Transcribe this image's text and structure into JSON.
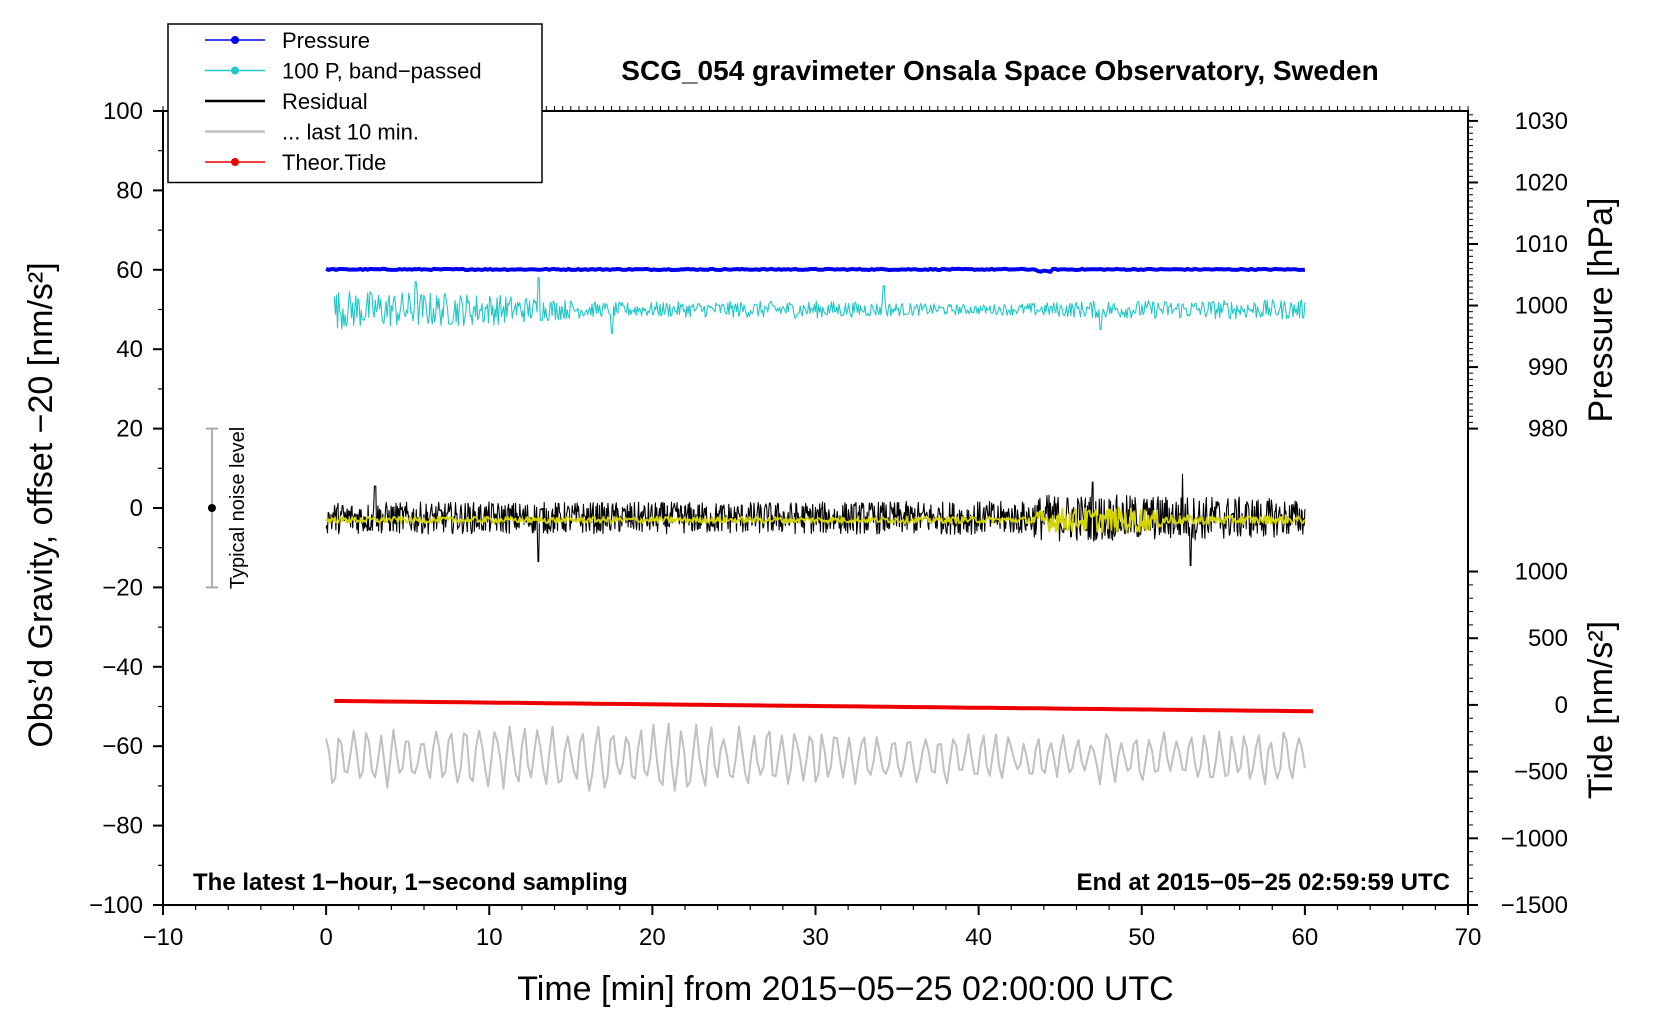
{
  "chart_data": {
    "type": "line",
    "title": "SCG_054 gravimeter Onsala Space Observatory, Sweden",
    "xlabel": "Time [min] from 2015−05−25 02:00:00 UTC",
    "ylabel": "Obs’d Gravity, offset −20 [nm/s²]",
    "xlim": [
      -10,
      70
    ],
    "ylim": [
      -100,
      100
    ],
    "x_ticks": [
      -10,
      0,
      10,
      20,
      30,
      40,
      50,
      60,
      70
    ],
    "x_tick_labels": [
      "−10",
      "0",
      "10",
      "20",
      "30",
      "40",
      "50",
      "60",
      "70"
    ],
    "y_ticks": [
      -100,
      -80,
      -60,
      -40,
      -20,
      0,
      20,
      40,
      60,
      80,
      100
    ],
    "y_tick_labels": [
      "−100",
      "−80",
      "−60",
      "−40",
      "−20",
      "0",
      "20",
      "40",
      "60",
      "80",
      "100"
    ],
    "right_axes": [
      {
        "name": "pressure",
        "label": "Pressure [hPa]",
        "ticks": [
          980,
          990,
          1000,
          1010,
          1020,
          1030
        ],
        "tick_labels": [
          "980",
          "990",
          "1000",
          "1010",
          "1020",
          "1030"
        ],
        "ticks_at_left_y": [
          20,
          35.5,
          51,
          66.5,
          82,
          97.5
        ]
      },
      {
        "name": "tide",
        "label": "Tide [nm/s²]",
        "ticks": [
          -1500,
          -1000,
          -500,
          0,
          500,
          1000
        ],
        "tick_labels": [
          "−1500",
          "−1000",
          "−500",
          "0",
          "500",
          "1000"
        ],
        "ticks_at_left_y": [
          -100,
          -83.2,
          -66.4,
          -49.6,
          -32.8,
          -16
        ]
      }
    ],
    "legend": {
      "position": "top-left",
      "entries": [
        {
          "label": "Pressure",
          "color": "#0000ee",
          "marker": true
        },
        {
          "label": "100 P, band−passed",
          "color": "#22c8c8",
          "marker": true
        },
        {
          "label": "Residual",
          "color": "#000000",
          "marker": false
        },
        {
          "label": "... last 10 min.",
          "color": "#c0c0c0",
          "marker": false
        },
        {
          "label": "Theor.Tide",
          "color": "#ee0000",
          "marker": true
        }
      ]
    },
    "series": [
      {
        "name": "Pressure",
        "color": "#0000ee",
        "x_range": [
          0,
          60
        ],
        "kind": "flat",
        "level": 60.1,
        "noise": 0.3
      },
      {
        "name": "100 P, band−passed",
        "color": "#22c8c8",
        "x_range": [
          0.5,
          60
        ],
        "kind": "noisy",
        "level": 50,
        "amplitudes": [
          [
            0,
            5
          ],
          [
            10,
            4
          ],
          [
            17,
            1.8
          ],
          [
            30,
            2.2
          ],
          [
            40,
            1.2
          ],
          [
            47,
            2.2
          ],
          [
            60,
            2.5
          ]
        ],
        "spikes": [
          [
            13,
            8
          ],
          [
            34.2,
            6
          ],
          [
            47.5,
            -5
          ],
          [
            5.5,
            7
          ],
          [
            17.5,
            -6
          ]
        ]
      },
      {
        "name": "Residual",
        "color": "#000000",
        "x_range": [
          0,
          60
        ],
        "kind": "noisy",
        "level": -2.5,
        "amplitudes": [
          [
            0,
            4
          ],
          [
            20,
            4
          ],
          [
            43,
            4.2
          ],
          [
            44,
            6
          ],
          [
            55,
            5.5
          ],
          [
            60,
            4.5
          ]
        ],
        "spikes": [
          [
            3,
            8
          ],
          [
            13,
            -11
          ],
          [
            47,
            9
          ],
          [
            52.5,
            11
          ],
          [
            53,
            -12
          ]
        ]
      },
      {
        "name": "Residual smoothed",
        "color": "#d4d400",
        "x_range": [
          0,
          60
        ],
        "kind": "noisy",
        "level": -3,
        "amplitudes": [
          [
            0,
            0.8
          ],
          [
            43,
            0.8
          ],
          [
            44,
            3
          ],
          [
            50,
            3.2
          ],
          [
            52,
            1.2
          ],
          [
            60,
            1
          ]
        ]
      },
      {
        "name": "Theor.Tide",
        "color": "#ee0000",
        "x_range": [
          0.5,
          60.5
        ],
        "kind": "linear",
        "y_start": -48.6,
        "y_end": -51.2
      },
      {
        "name": "... last 10 min.",
        "color": "#c0c0c0",
        "x_range": [
          0,
          60
        ],
        "kind": "noisy_smooth",
        "level": -63,
        "amplitudes": [
          [
            0,
            6
          ],
          [
            20,
            7
          ],
          [
            40,
            5
          ],
          [
            60,
            5.5
          ]
        ]
      }
    ],
    "noise_bar": {
      "label": "Typical noise level",
      "x": -7,
      "y_center": 0,
      "y_low": -20,
      "y_high": 20
    },
    "notes": {
      "bottom_left": "The latest 1−hour, 1−second sampling",
      "bottom_right": "End at 2015−05−25 02:59:59 UTC"
    }
  }
}
